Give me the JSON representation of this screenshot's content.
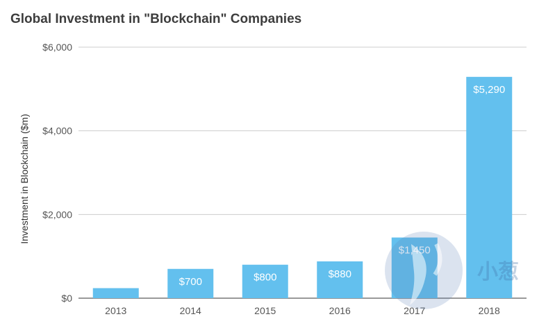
{
  "chart_data": {
    "type": "bar",
    "title": "Global Investment in \"Blockchain\" Companies",
    "xlabel": "",
    "ylabel": "Investment in Blockchain ($m)",
    "categories": [
      "2013",
      "2014",
      "2015",
      "2016",
      "2017",
      "2018"
    ],
    "values": [
      240,
      700,
      800,
      880,
      1450,
      5290
    ],
    "data_labels": [
      "",
      "$700",
      "$800",
      "$880",
      "$1,450",
      "$5,290"
    ],
    "ylim": [
      0,
      6000
    ],
    "yticks": [
      0,
      2000,
      4000,
      6000
    ],
    "ytick_labels": [
      "$0",
      "$2,000",
      "$4,000",
      "$6,000"
    ],
    "grid": true,
    "legend": "none",
    "bar_color": "#63c0ee",
    "grid_color": "#cccccc"
  },
  "watermark": {
    "text": "小葱",
    "icon": "leaf-logo-icon",
    "color": "#3f6fa6"
  }
}
